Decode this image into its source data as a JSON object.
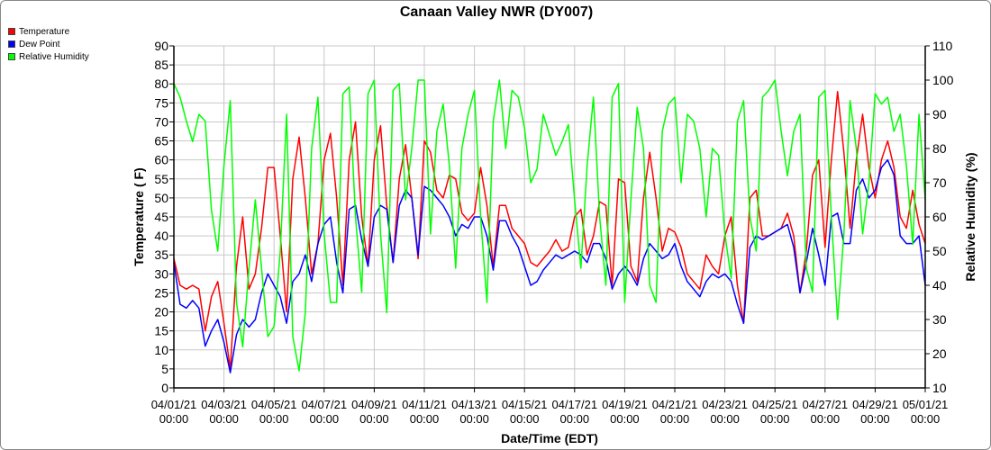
{
  "chart_data": {
    "type": "line",
    "title": "Canaan Valley NWR (DY007)",
    "xlabel": "Date/Time (EDT)",
    "ylabel": "Temperature ( F)",
    "y2label": "Relative Humidity (%)",
    "ylim": [
      0,
      90
    ],
    "y2lim": [
      10,
      110
    ],
    "yticks": [
      "0",
      "5",
      "10",
      "15",
      "20",
      "25",
      "30",
      "35",
      "40",
      "45",
      "50",
      "55",
      "60",
      "65",
      "70",
      "75",
      "80",
      "85",
      "90"
    ],
    "y2ticks": [
      "10",
      "20",
      "30",
      "40",
      "50",
      "60",
      "70",
      "80",
      "90",
      "100",
      "110"
    ],
    "xlim_days": [
      0,
      30
    ],
    "xticks": [
      {
        "date": "04/01/21",
        "time": "00:00"
      },
      {
        "date": "04/03/21",
        "time": "00:00"
      },
      {
        "date": "04/05/21",
        "time": "00:00"
      },
      {
        "date": "04/07/21",
        "time": "00:00"
      },
      {
        "date": "04/09/21",
        "time": "00:00"
      },
      {
        "date": "04/11/21",
        "time": "00:00"
      },
      {
        "date": "04/13/21",
        "time": "00:00"
      },
      {
        "date": "04/15/21",
        "time": "00:00"
      },
      {
        "date": "04/17/21",
        "time": "00:00"
      },
      {
        "date": "04/19/21",
        "time": "00:00"
      },
      {
        "date": "04/21/21",
        "time": "00:00"
      },
      {
        "date": "04/23/21",
        "time": "00:00"
      },
      {
        "date": "04/25/21",
        "time": "00:00"
      },
      {
        "date": "04/27/21",
        "time": "00:00"
      },
      {
        "date": "04/29/21",
        "time": "00:00"
      },
      {
        "date": "05/01/21",
        "time": "00:00"
      }
    ],
    "grid": true,
    "legend_position": "top-left",
    "x_step_days": 0.25,
    "series": [
      {
        "name": "Temperature",
        "color": "#ff0000",
        "axis": "left",
        "values": [
          34,
          27,
          26,
          27,
          26,
          15,
          24,
          28,
          17,
          5,
          32,
          45,
          26,
          30,
          42,
          58,
          58,
          40,
          20,
          55,
          66,
          50,
          30,
          38,
          60,
          67,
          50,
          27,
          60,
          70,
          45,
          32,
          60,
          69,
          48,
          33,
          55,
          64,
          50,
          34,
          65,
          62,
          52,
          50,
          56,
          55,
          46,
          44,
          46,
          58,
          48,
          32,
          48,
          48,
          42,
          40,
          38,
          33,
          32,
          34,
          36,
          39,
          36,
          37,
          45,
          47,
          35,
          40,
          49,
          48,
          27,
          55,
          54,
          32,
          28,
          50,
          62,
          50,
          36,
          42,
          41,
          37,
          30,
          28,
          26,
          35,
          32,
          30,
          40,
          45,
          27,
          17,
          50,
          52,
          40,
          40,
          41,
          42,
          46,
          40,
          25,
          36,
          56,
          60,
          37,
          60,
          78,
          62,
          42,
          60,
          72,
          58,
          50,
          60,
          65,
          58,
          45,
          42,
          52,
          43,
          38
        ]
      },
      {
        "name": "Dew Point",
        "color": "#0000ff",
        "axis": "left",
        "values": [
          33,
          22,
          21,
          23,
          21,
          11,
          15,
          18,
          12,
          4,
          14,
          18,
          16,
          18,
          25,
          30,
          27,
          24,
          17,
          28,
          30,
          35,
          28,
          38,
          43,
          45,
          33,
          25,
          47,
          48,
          39,
          32,
          45,
          48,
          47,
          33,
          48,
          52,
          50,
          35,
          53,
          52,
          50,
          48,
          45,
          40,
          43,
          42,
          45,
          45,
          40,
          31,
          44,
          44,
          40,
          37,
          32,
          27,
          28,
          31,
          33,
          35,
          34,
          35,
          36,
          35,
          33,
          38,
          38,
          34,
          26,
          30,
          32,
          30,
          27,
          34,
          38,
          36,
          34,
          35,
          38,
          32,
          28,
          26,
          24,
          28,
          30,
          29,
          30,
          28,
          22,
          17,
          37,
          40,
          39,
          40,
          41,
          42,
          43,
          37,
          25,
          33,
          42,
          35,
          27,
          45,
          46,
          38,
          38,
          52,
          55,
          50,
          52,
          58,
          60,
          56,
          40,
          38,
          38,
          40,
          27
        ]
      },
      {
        "name": "Relative Humidity",
        "color": "#00ff00",
        "axis": "right",
        "values": [
          99,
          95,
          88,
          82,
          90,
          88,
          62,
          50,
          75,
          94,
          35,
          22,
          45,
          65,
          45,
          25,
          28,
          50,
          90,
          25,
          15,
          32,
          80,
          95,
          55,
          35,
          35,
          96,
          98,
          60,
          38,
          96,
          100,
          55,
          32,
          97,
          99,
          65,
          80,
          100,
          100,
          55,
          85,
          93,
          75,
          45,
          80,
          90,
          97,
          60,
          35,
          88,
          100,
          80,
          97,
          95,
          86,
          70,
          74,
          90,
          84,
          78,
          82,
          87,
          65,
          45,
          75,
          95,
          60,
          40,
          95,
          99,
          35,
          65,
          92,
          80,
          40,
          35,
          85,
          93,
          95,
          70,
          90,
          88,
          80,
          60,
          80,
          78,
          55,
          42,
          88,
          94,
          60,
          50,
          95,
          97,
          100,
          85,
          72,
          85,
          90,
          45,
          38,
          95,
          97,
          60,
          30,
          55,
          94,
          80,
          55,
          70,
          96,
          93,
          95,
          85,
          90,
          75,
          52,
          90,
          65
        ]
      }
    ]
  }
}
